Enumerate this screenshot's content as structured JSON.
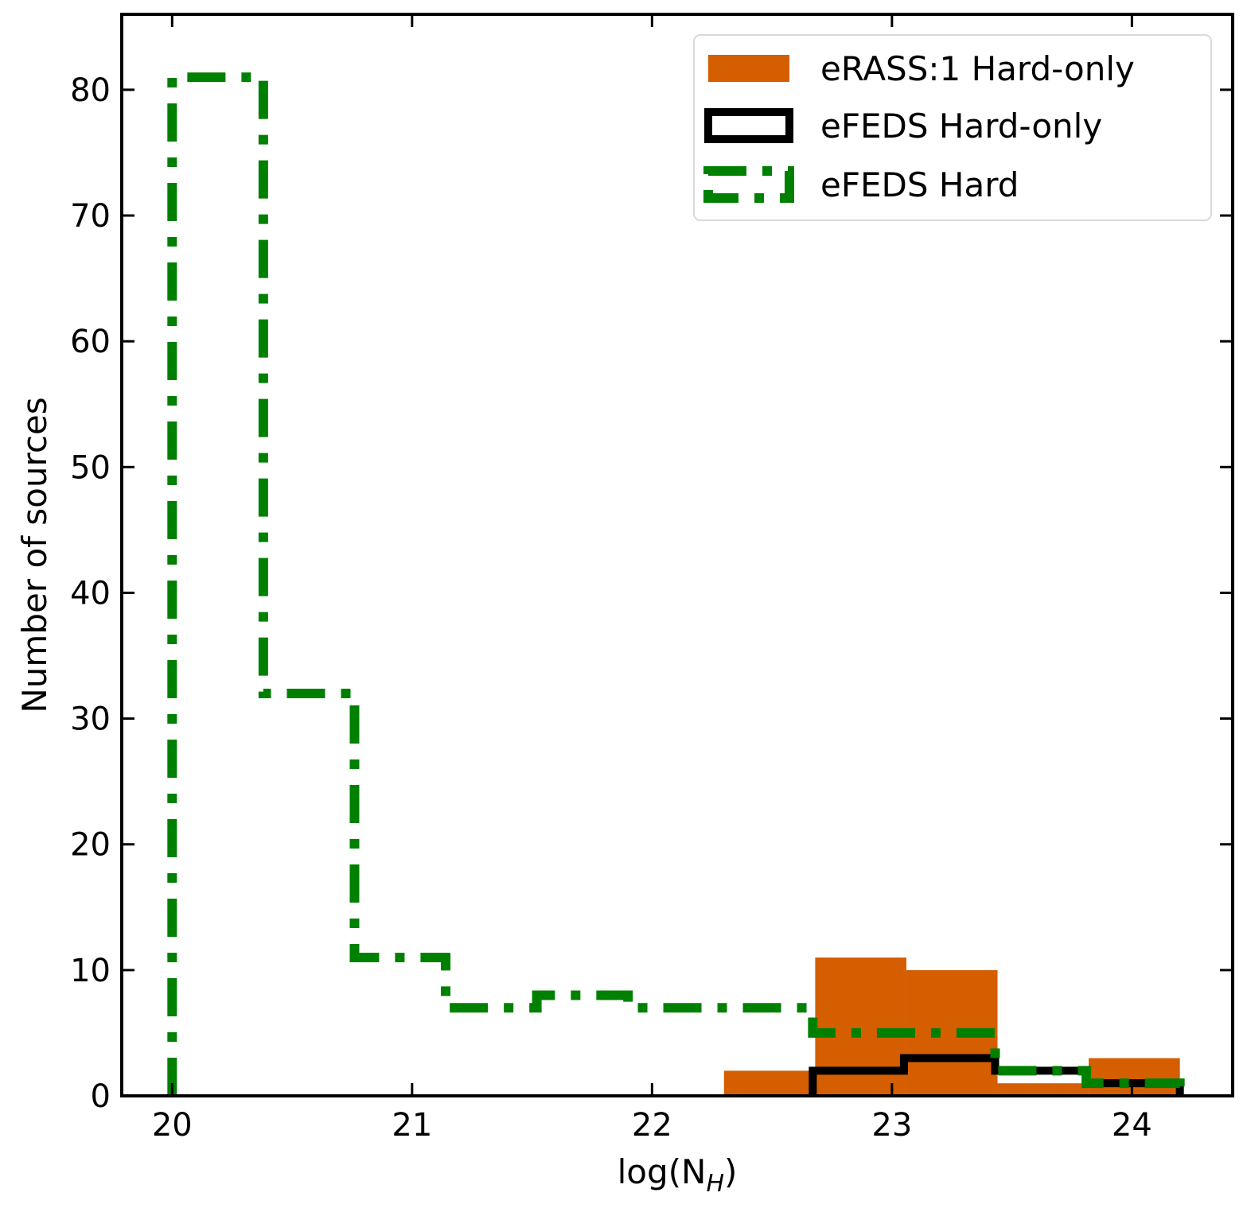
{
  "chart_data": {
    "type": "histogram",
    "xlabel": "log(N",
    "xlabel_sub": "H",
    "xlabel_close": ")",
    "ylabel": "Number of sources",
    "xlim": [
      19.79,
      24.42
    ],
    "ylim": [
      0,
      86
    ],
    "xticks": [
      20,
      21,
      22,
      23,
      24
    ],
    "yticks": [
      0,
      10,
      20,
      30,
      40,
      50,
      60,
      70,
      80
    ],
    "legend_position": "top-right",
    "series": [
      {
        "name": "eRASS:1 Hard-only",
        "style": "filled",
        "color": "#d45e00",
        "edges": [
          22.3,
          22.68,
          23.06,
          23.44,
          23.82,
          24.2
        ],
        "counts": [
          2,
          11,
          10,
          1,
          3
        ]
      },
      {
        "name": "eFEDS Hard-only",
        "style": "step-solid",
        "color": "#000000",
        "edges": [
          22.67,
          23.05,
          23.43,
          23.81,
          24.2
        ],
        "counts": [
          2,
          3,
          2,
          1
        ]
      },
      {
        "name": "eFEDS Hard",
        "style": "step-dashdot",
        "color": "#008000",
        "edges": [
          20.0,
          20.38,
          20.76,
          21.14,
          21.52,
          21.9,
          22.29,
          22.67,
          23.05,
          23.43,
          23.81,
          24.2
        ],
        "counts": [
          81,
          32,
          11,
          7,
          8,
          7,
          7,
          5,
          5,
          2,
          1
        ]
      }
    ]
  }
}
